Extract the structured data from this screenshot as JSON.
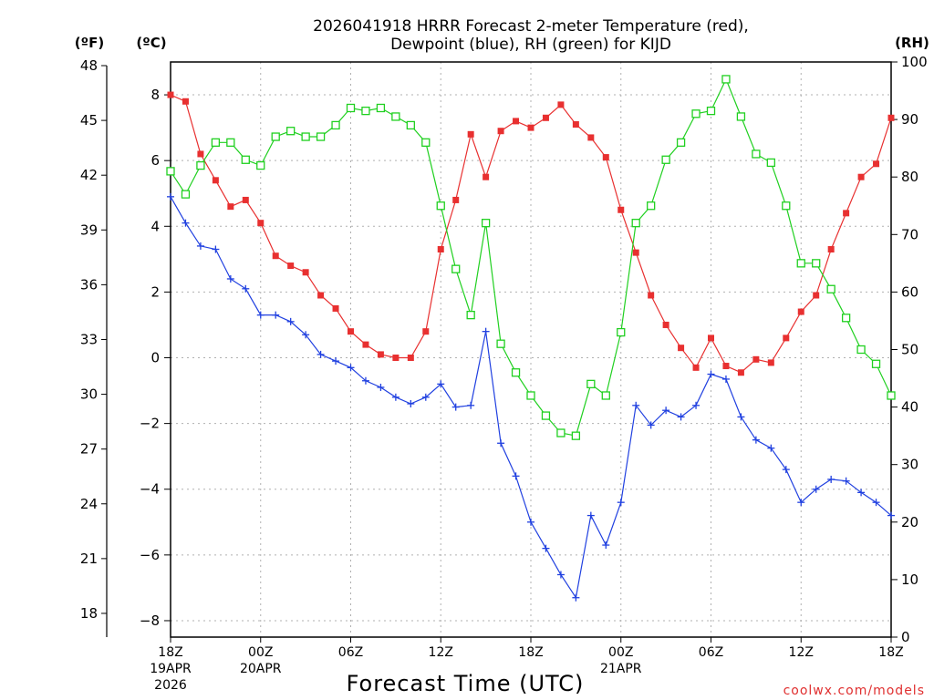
{
  "chart_data": {
    "type": "line",
    "title_line1": "2026041918 HRRR Forecast 2-meter Temperature (red),",
    "title_line2": "Dewpoint (blue), RH (green) for KIJD",
    "xlabel": "Forecast Time (UTC)",
    "credit": "coolwx.com/models",
    "units": {
      "fahrenheit": "(ºF)",
      "celsius": "(ºC)",
      "rh": "(RH)"
    },
    "xlim": [
      0,
      48
    ],
    "ylim_c": [
      -8.5,
      9
    ],
    "ylim_rh": [
      0,
      100
    ],
    "x_ticks": [
      {
        "x": 0,
        "lines": [
          "18Z",
          "19APR",
          "2026"
        ]
      },
      {
        "x": 6,
        "lines": [
          "00Z",
          "20APR"
        ]
      },
      {
        "x": 12,
        "lines": [
          "06Z"
        ]
      },
      {
        "x": 18,
        "lines": [
          "12Z"
        ]
      },
      {
        "x": 24,
        "lines": [
          "18Z"
        ]
      },
      {
        "x": 30,
        "lines": [
          "00Z",
          "21APR"
        ]
      },
      {
        "x": 36,
        "lines": [
          "06Z"
        ]
      },
      {
        "x": 42,
        "lines": [
          "12Z"
        ]
      },
      {
        "x": 48,
        "lines": [
          "18Z"
        ]
      }
    ],
    "fahrenheit_ticks": [
      18,
      21,
      24,
      27,
      30,
      33,
      36,
      39,
      42,
      45,
      48
    ],
    "celsius_ticks": [
      -8,
      -6,
      -4,
      -2,
      0,
      2,
      4,
      6,
      8
    ],
    "rh_ticks": [
      0,
      10,
      20,
      30,
      40,
      50,
      60,
      70,
      80,
      90,
      100
    ],
    "grid": true,
    "series": [
      {
        "name": "Temperature",
        "color": "#e83030",
        "marker": "filled-square",
        "values": [
          8.0,
          7.8,
          6.2,
          5.4,
          4.6,
          4.8,
          4.1,
          3.1,
          2.8,
          2.6,
          1.9,
          1.5,
          0.8,
          0.4,
          0.1,
          0.0,
          0.0,
          0.8,
          3.3,
          4.8,
          6.8,
          5.5,
          6.9,
          7.2,
          7.0,
          7.3,
          7.7,
          7.1,
          6.7,
          6.1,
          4.5,
          3.2,
          1.9,
          1.0,
          0.3,
          -0.3,
          0.6,
          -0.25,
          -0.45,
          -0.05,
          -0.15,
          0.6,
          1.4,
          1.9,
          3.3,
          4.4,
          5.5,
          5.9,
          7.3
        ]
      },
      {
        "name": "Dewpoint",
        "color": "#2040e0",
        "marker": "plus",
        "values": [
          4.9,
          4.1,
          3.4,
          3.3,
          2.4,
          2.1,
          1.3,
          1.3,
          1.1,
          0.7,
          0.1,
          -0.1,
          -0.3,
          -0.7,
          -0.9,
          -1.2,
          -1.4,
          -1.2,
          -0.8,
          -1.5,
          -1.45,
          0.8,
          -2.6,
          -3.6,
          -5.0,
          -5.8,
          -6.6,
          -7.3,
          -4.8,
          -5.7,
          -4.4,
          -1.45,
          -2.05,
          -1.6,
          -1.8,
          -1.45,
          -0.5,
          -0.65,
          -1.8,
          -2.5,
          -2.75,
          -3.4,
          -4.4,
          -4.0,
          -3.7,
          -3.75,
          -4.1,
          -4.4,
          -4.8
        ]
      },
      {
        "name": "RH",
        "color": "#20d020",
        "marker": "open-square",
        "values": [
          81,
          77,
          82,
          86,
          86,
          83,
          82,
          87,
          88,
          87,
          87,
          89,
          92,
          91.5,
          92,
          90.5,
          89,
          86,
          75,
          64,
          56,
          72,
          51,
          46,
          42,
          38.5,
          35.5,
          35,
          44,
          42,
          53,
          72,
          75,
          83,
          86,
          91,
          91.5,
          97,
          90.5,
          84,
          82.5,
          75,
          65,
          65,
          60.5,
          55.5,
          50,
          47.5,
          42
        ]
      }
    ]
  }
}
